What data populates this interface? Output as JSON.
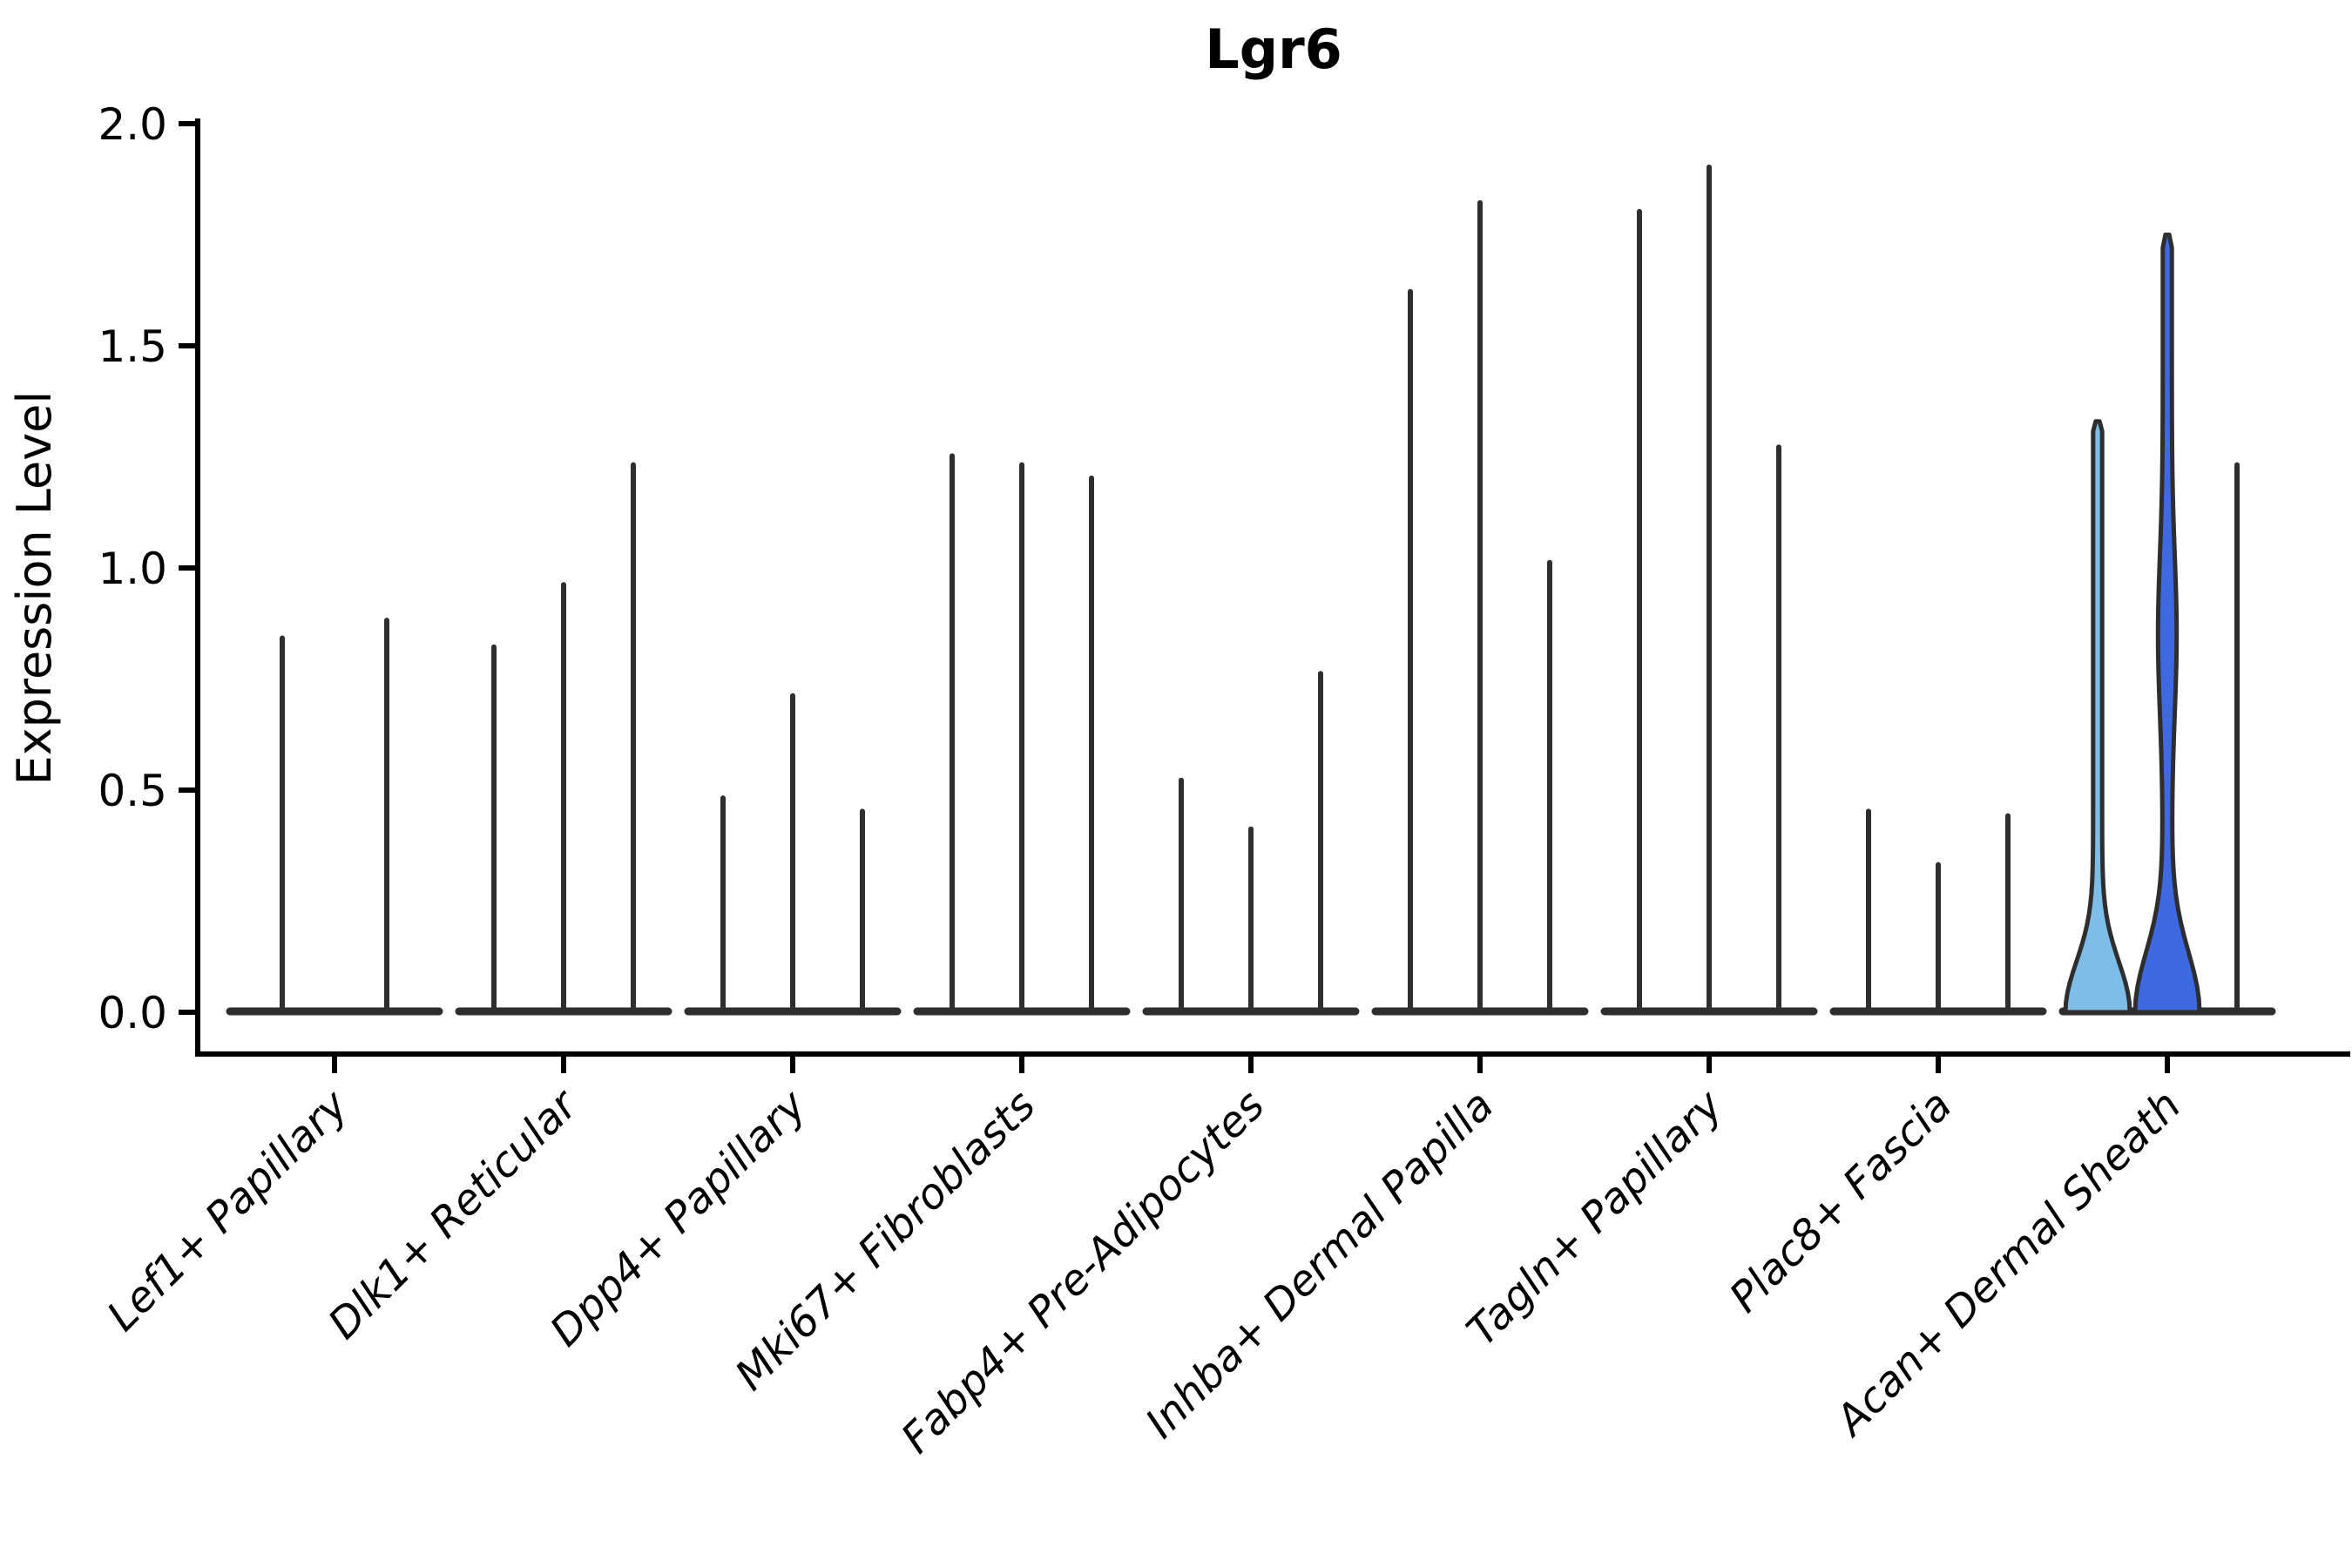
{
  "chart_data": {
    "type": "violin",
    "title": "Lgr6",
    "ylabel": "Expression Level",
    "ylim": [
      0.0,
      2.0
    ],
    "yticks": [
      "0.0",
      "0.5",
      "1.0",
      "1.5",
      "2.0"
    ],
    "ytick_values": [
      0.0,
      0.5,
      1.0,
      1.5,
      2.0
    ],
    "grid": false,
    "legend": "none",
    "colors": {
      "violin_stroke": "#2e2e2e",
      "axis": "#000000",
      "highlight_fill_1": "#7dbde8",
      "highlight_fill_2": "#3f69e1"
    },
    "categories": [
      "Lef1+ Papillary",
      "Dlk1+ Reticular",
      "Dpp4+ Papillary",
      "Mki67+ Fibroblasts",
      "Fabp4+ Pre-Adipocytes",
      "Inhba+ Dermal Papilla",
      "Tagln+ Papillary",
      "Plac8+ Fascia",
      "Acan+ Dermal Sheath"
    ],
    "groups": [
      {
        "category": "Lef1+ Papillary",
        "violins": [
          {
            "max": 0.85
          },
          {
            "max": 0.89
          }
        ]
      },
      {
        "category": "Dlk1+ Reticular",
        "violins": [
          {
            "max": 0.83
          },
          {
            "max": 0.97
          },
          {
            "max": 1.24
          }
        ]
      },
      {
        "category": "Dpp4+ Papillary",
        "violins": [
          {
            "max": 0.49
          },
          {
            "max": 0.72
          },
          {
            "max": 0.46
          }
        ]
      },
      {
        "category": "Mki67+ Fibroblasts",
        "violins": [
          {
            "max": 1.26
          },
          {
            "max": 1.24
          },
          {
            "max": 1.21
          }
        ]
      },
      {
        "category": "Fabp4+ Pre-Adipocytes",
        "violins": [
          {
            "max": 0.53
          },
          {
            "max": 0.42
          },
          {
            "max": 0.77
          }
        ]
      },
      {
        "category": "Inhba+ Dermal Papilla",
        "violins": [
          {
            "max": 1.63
          },
          {
            "max": 1.83
          },
          {
            "max": 1.02
          }
        ]
      },
      {
        "category": "Tagln+ Papillary",
        "violins": [
          {
            "max": 1.81
          },
          {
            "max": 1.91
          },
          {
            "max": 1.28
          }
        ]
      },
      {
        "category": "Plac8+ Fascia",
        "violins": [
          {
            "max": 0.46
          },
          {
            "max": 0.34
          },
          {
            "max": 0.45
          }
        ]
      },
      {
        "category": "Acan+ Dermal Sheath",
        "violins": [
          {
            "max": 1.33,
            "shape": "bell",
            "fill": "#7dbde8"
          },
          {
            "max": 1.75,
            "shape": "bell",
            "fill": "#3f69e1",
            "bulge": true
          },
          {
            "max": 1.24
          }
        ]
      }
    ]
  }
}
